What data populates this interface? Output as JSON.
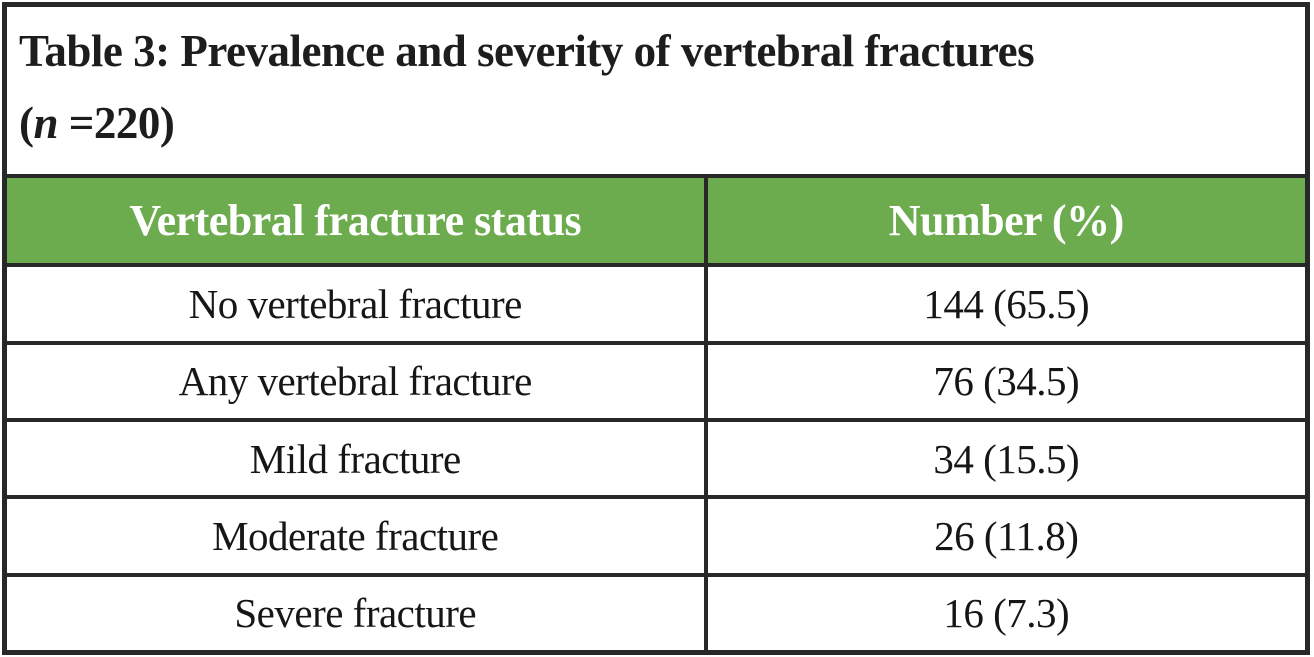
{
  "title": {
    "line1": "Table 3: Prevalence and severity of vertebral fractures",
    "line2_pre": "(",
    "line2_italic": "n",
    "line2_post": " =220)"
  },
  "table": {
    "header": {
      "status": "Vertebral fracture status",
      "number": "Number (%)"
    },
    "rows": [
      {
        "status": "No vertebral fracture",
        "number": "144 (65.5)"
      },
      {
        "status": "Any vertebral fracture",
        "number": "76 (34.5)"
      },
      {
        "status": "Mild fracture",
        "number": "34 (15.5)"
      },
      {
        "status": "Moderate fracture",
        "number": "26 (11.8)"
      },
      {
        "status": "Severe fracture",
        "number": "16 (7.3)"
      }
    ]
  },
  "colors": {
    "header_bg": "#6CAC4F",
    "header_text": "#FFFFFF",
    "border": "#282828",
    "body_text": "#161616",
    "background": "#FFFFFF"
  }
}
